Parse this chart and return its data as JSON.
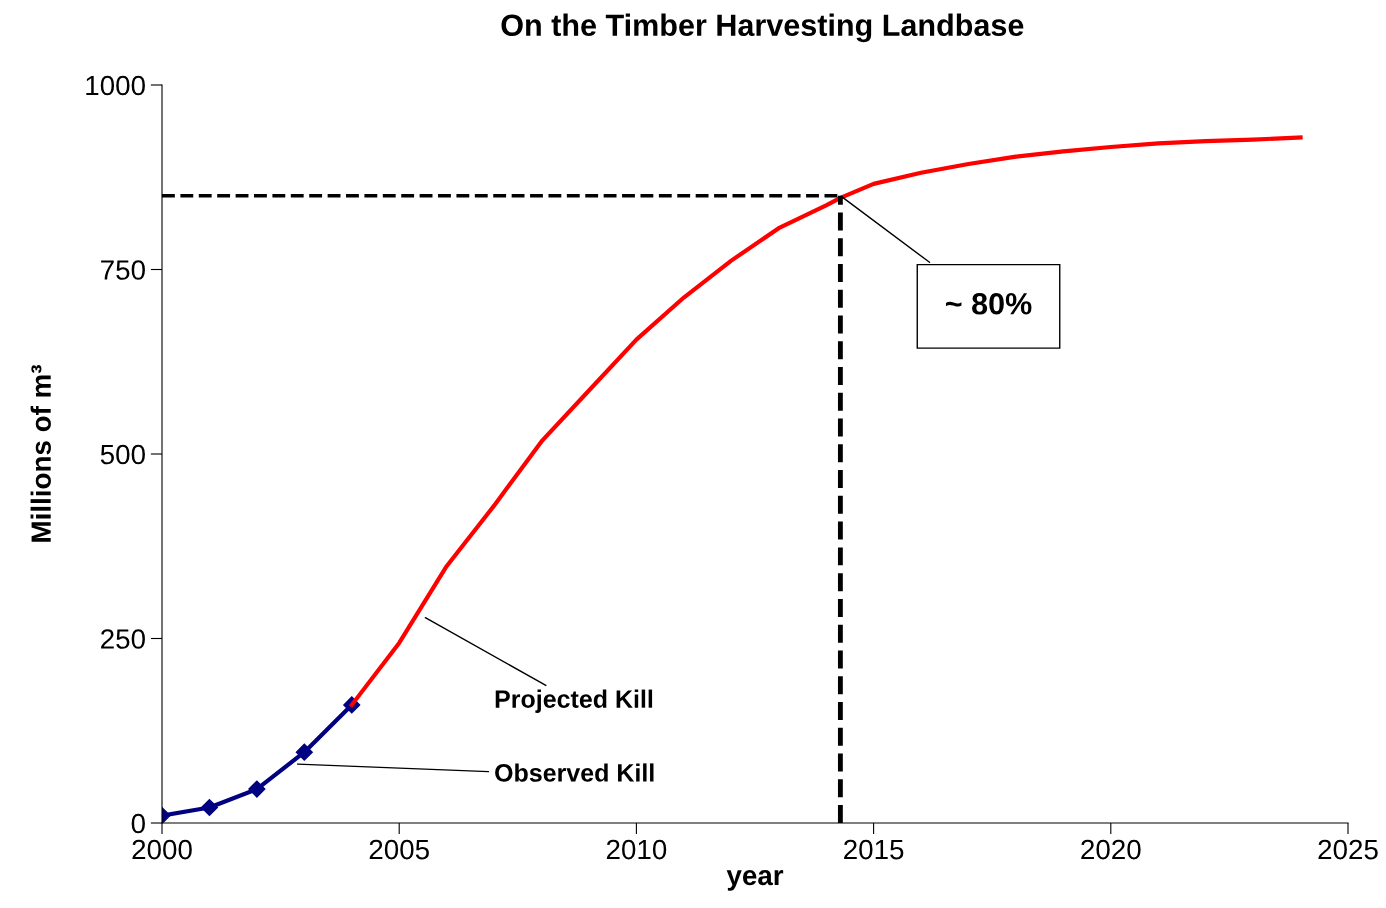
{
  "chart_data": {
    "type": "line",
    "title": "On the Timber Harvesting Landbase",
    "xlabel": "year",
    "ylabel": "Millions of m³",
    "series": [
      {
        "name": null,
        "color": "#000080",
        "marker": "diamond",
        "x": [
          2000,
          2001,
          2002,
          2003,
          2004
        ],
        "values": [
          10,
          21,
          46,
          96,
          160
        ]
      },
      {
        "name": null,
        "color": "#ff0000",
        "marker": "none",
        "x": [
          2004,
          2005,
          2006,
          2007,
          2008,
          2009,
          2010,
          2011,
          2012,
          2013,
          2014,
          2014.3,
          2015,
          2016,
          2017,
          2018,
          2019,
          2020,
          2021,
          2022,
          2023,
          2024
        ],
        "values": [
          160,
          244,
          348,
          430,
          517,
          586,
          655,
          712,
          762,
          806,
          837,
          847,
          866,
          881,
          893,
          903,
          910,
          916,
          921,
          924,
          926,
          929
        ]
      }
    ],
    "xlim": [
      2000,
      2025
    ],
    "xticks": [
      2000,
      2005,
      2010,
      2015,
      2020,
      2025
    ],
    "ylim": [
      0,
      1000
    ],
    "yticks": [
      0,
      250,
      500,
      750,
      1000
    ],
    "grid": false,
    "legend": false,
    "line_style": "solid",
    "ref_lines": [
      {
        "axis": "y",
        "value": 850,
        "line_style": "dashed",
        "color": "#000000"
      },
      {
        "axis": "x",
        "value": 2014.3,
        "line_style": "dashed",
        "color": "#000000"
      }
    ],
    "annotations": [
      {
        "text": "~ 80%",
        "x": 2014.3,
        "y": 850
      },
      {
        "text": "Projected Kill",
        "x": 2005.5,
        "y": 280
      },
      {
        "text": "Observed Kill",
        "x": 2002.8,
        "y": 80
      }
    ]
  }
}
